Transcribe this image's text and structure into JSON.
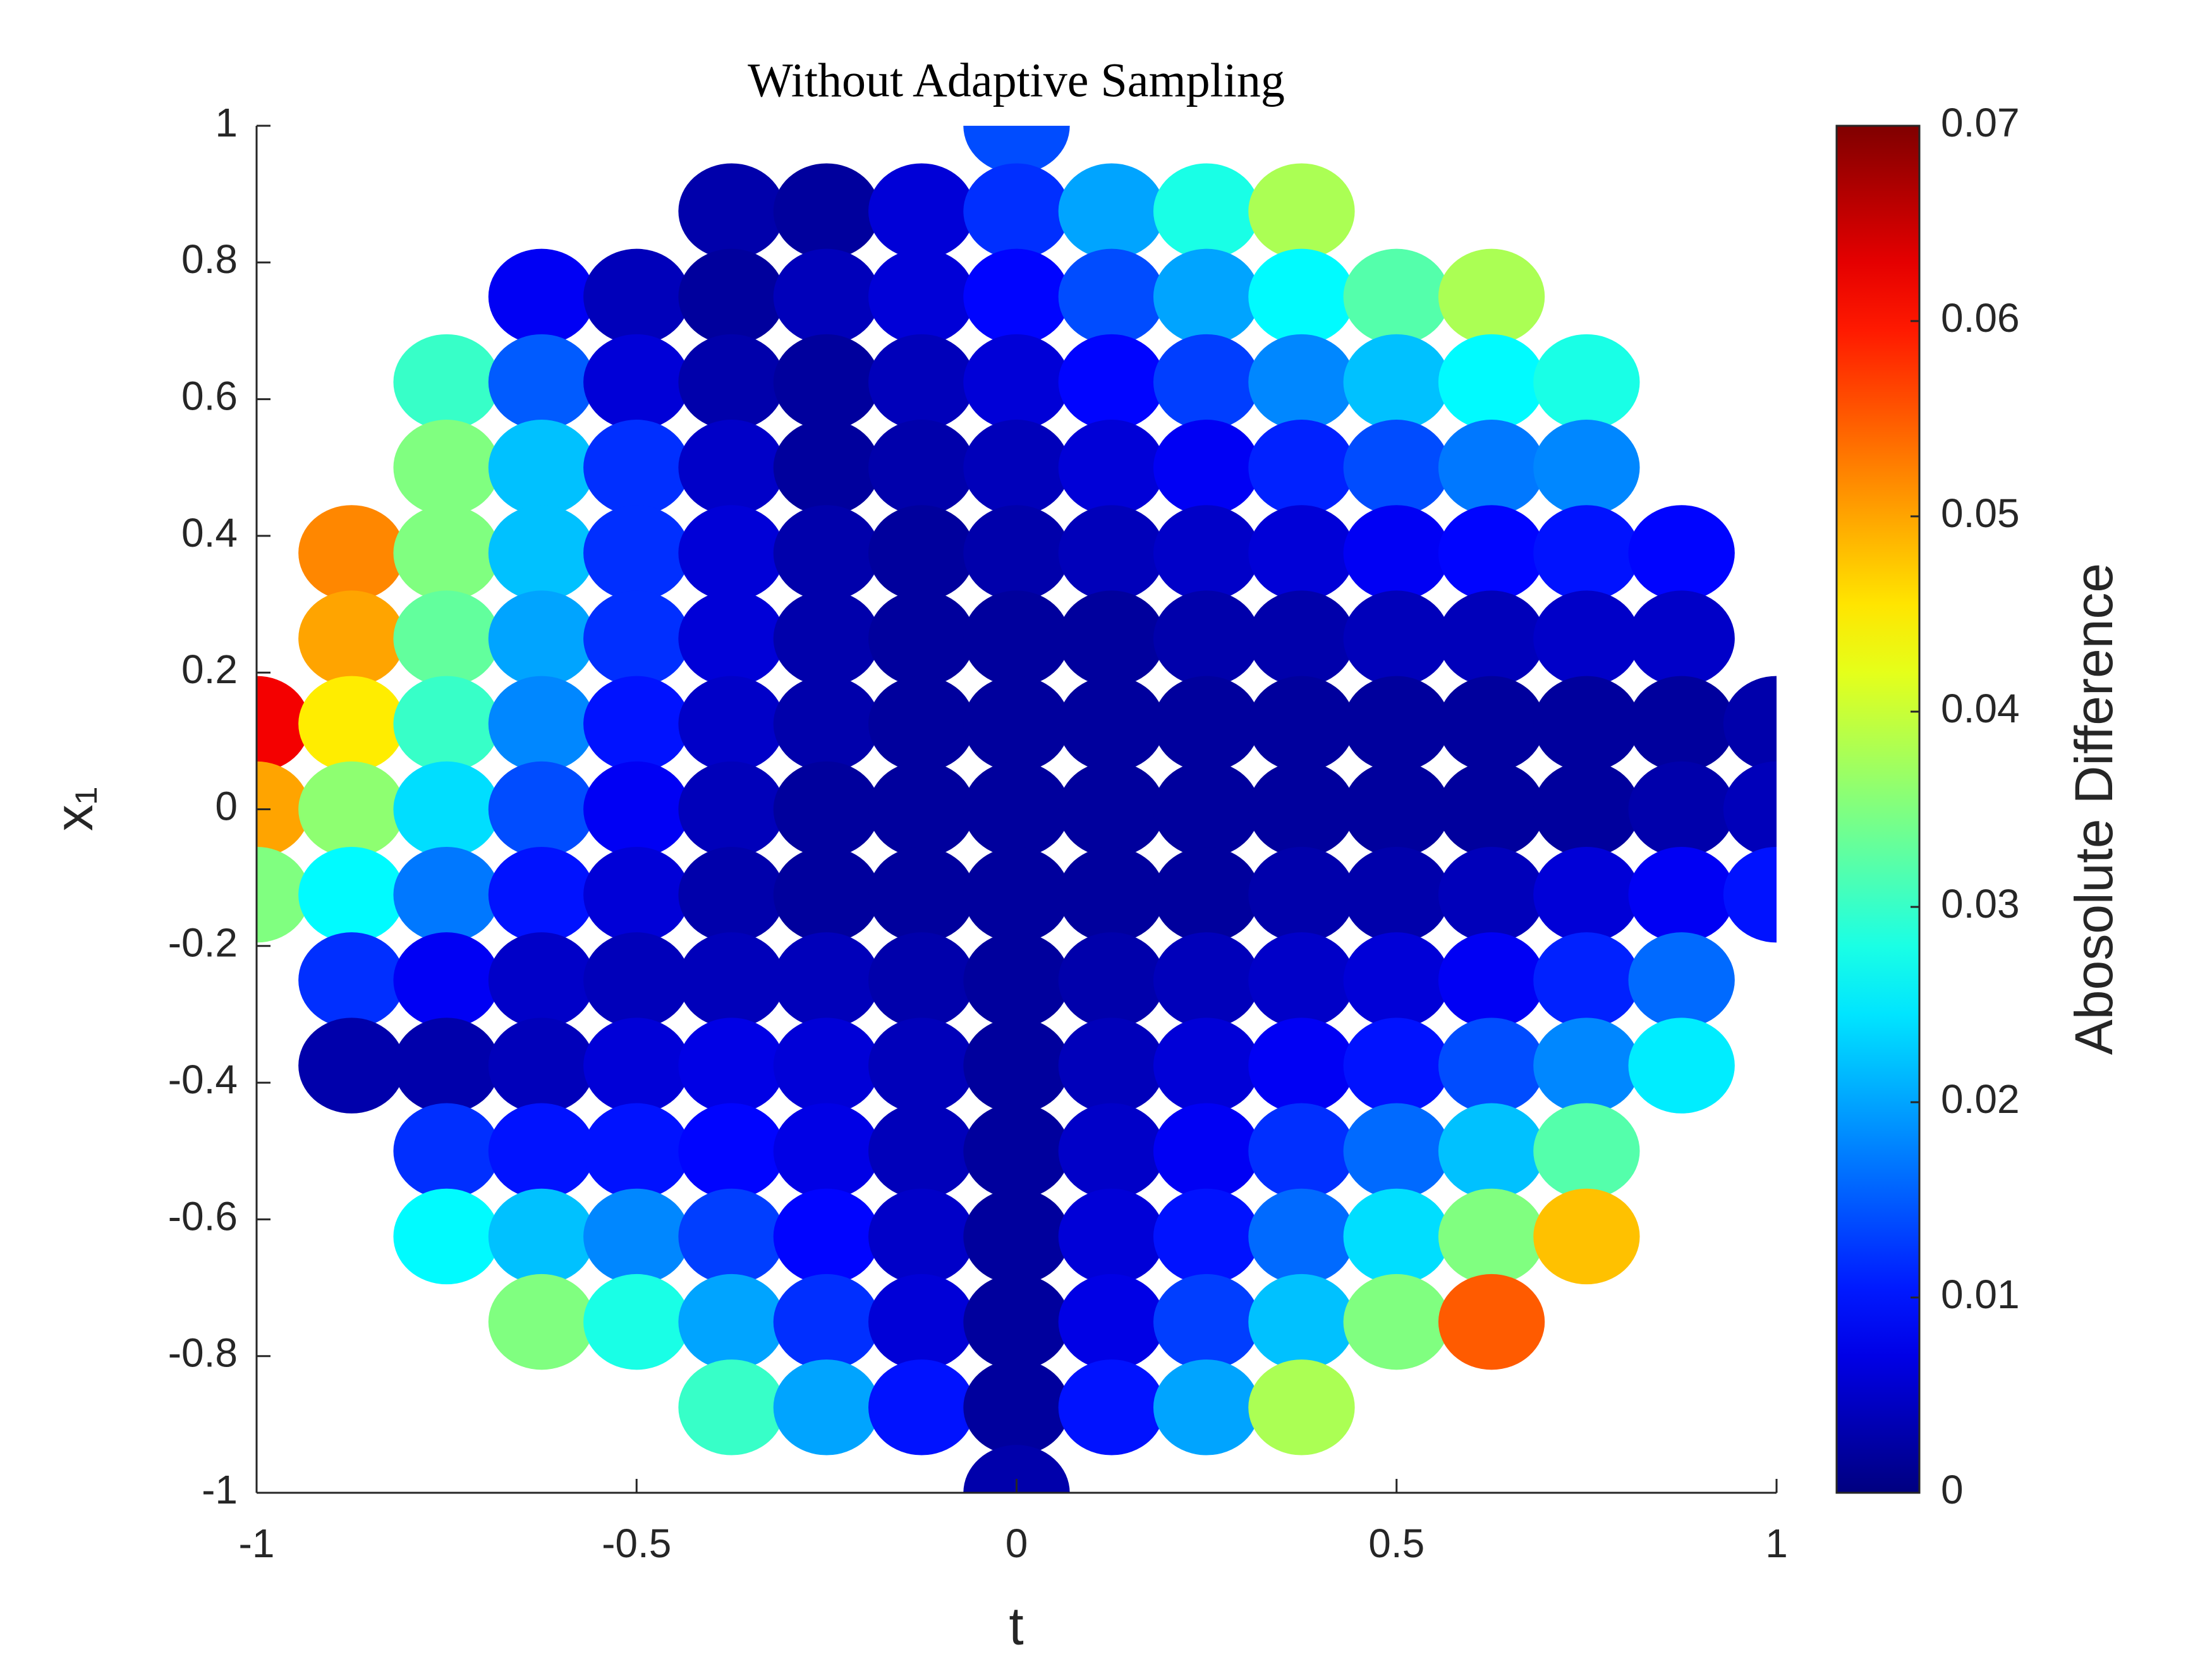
{
  "chart_data": {
    "type": "scatter",
    "title": "Without Adaptive Sampling",
    "xlabel": "t",
    "ylabel": "x₁",
    "colorbar_label": "Abosolute Difference",
    "colormap": "jet",
    "clim": [
      0,
      0.07
    ],
    "colorbar_ticks": [
      0,
      0.01,
      0.02,
      0.03,
      0.04,
      0.05,
      0.06,
      0.07
    ],
    "xlim": [
      -1,
      1
    ],
    "ylim": [
      -1,
      1
    ],
    "xticks": [
      -1,
      -0.5,
      0,
      0.5,
      1
    ],
    "yticks": [
      -1,
      -0.8,
      -0.6,
      -0.4,
      -0.2,
      0,
      0.2,
      0.4,
      0.6,
      0.8,
      1
    ],
    "x": [
      -1,
      -0.875,
      -0.75,
      -0.625,
      -0.5,
      -0.375,
      -0.25,
      -0.125,
      0,
      0.125,
      0.25,
      0.375,
      0.5,
      0.625,
      0.75,
      0.875,
      1
    ],
    "y": [
      1,
      0.875,
      0.75,
      0.625,
      0.5,
      0.375,
      0.25,
      0.125,
      0,
      -0.125,
      -0.25,
      -0.375,
      -0.5,
      -0.625,
      -0.75,
      -0.875,
      -1
    ],
    "values": [
      [
        null,
        null,
        null,
        null,
        null,
        null,
        null,
        null,
        0.014,
        null,
        null,
        null,
        null,
        null,
        null,
        null,
        null
      ],
      [
        null,
        null,
        null,
        null,
        null,
        0.003,
        0.002,
        0.006,
        0.012,
        0.02,
        0.028,
        0.038,
        null,
        null,
        null,
        null,
        null
      ],
      [
        null,
        null,
        null,
        0.008,
        0.004,
        0.002,
        0.004,
        0.006,
        0.009,
        0.014,
        0.02,
        0.026,
        0.032,
        0.038,
        null,
        null,
        null
      ],
      [
        null,
        null,
        0.03,
        0.015,
        0.006,
        0.003,
        0.002,
        0.004,
        0.006,
        0.009,
        0.013,
        0.018,
        0.022,
        0.026,
        0.028,
        null,
        null
      ],
      [
        null,
        null,
        0.035,
        0.022,
        0.012,
        0.005,
        0.002,
        0.003,
        0.004,
        0.006,
        0.008,
        0.011,
        0.014,
        0.017,
        0.018,
        null,
        null
      ],
      [
        null,
        0.052,
        0.035,
        0.022,
        0.012,
        0.006,
        0.003,
        0.002,
        0.003,
        0.004,
        0.005,
        0.006,
        0.008,
        0.009,
        0.01,
        0.009,
        null
      ],
      [
        null,
        0.05,
        0.033,
        0.02,
        0.012,
        0.006,
        0.003,
        0.002,
        0.002,
        0.002,
        0.003,
        0.003,
        0.004,
        0.004,
        0.005,
        0.005,
        null
      ],
      [
        0.062,
        0.045,
        0.03,
        0.018,
        0.01,
        0.005,
        0.003,
        0.002,
        0.002,
        0.002,
        0.002,
        0.002,
        0.002,
        0.002,
        0.002,
        0.002,
        0.003
      ],
      [
        0.05,
        0.036,
        0.024,
        0.014,
        0.008,
        0.004,
        0.002,
        0.002,
        0.002,
        0.002,
        0.002,
        0.002,
        0.002,
        0.002,
        0.002,
        0.003,
        0.004
      ],
      [
        0.035,
        0.026,
        0.017,
        0.01,
        0.006,
        0.003,
        0.002,
        0.002,
        0.002,
        0.002,
        0.002,
        0.003,
        0.003,
        0.004,
        0.006,
        0.008,
        0.01
      ],
      [
        null,
        0.012,
        0.008,
        0.005,
        0.004,
        0.004,
        0.004,
        0.003,
        0.002,
        0.003,
        0.004,
        0.005,
        0.006,
        0.008,
        0.011,
        0.016,
        null
      ],
      [
        null,
        0.003,
        0.003,
        0.004,
        0.006,
        0.007,
        0.006,
        0.004,
        0.002,
        0.004,
        0.006,
        0.008,
        0.01,
        0.014,
        0.018,
        0.025,
        null
      ],
      [
        null,
        null,
        0.012,
        0.01,
        0.01,
        0.009,
        0.007,
        0.004,
        0.002,
        0.005,
        0.008,
        0.012,
        0.016,
        0.022,
        0.032,
        null,
        null
      ],
      [
        null,
        null,
        0.026,
        0.022,
        0.018,
        0.013,
        0.009,
        0.005,
        0.002,
        0.006,
        0.01,
        0.016,
        0.024,
        0.035,
        0.048,
        null,
        null
      ],
      [
        null,
        null,
        null,
        0.035,
        0.028,
        0.02,
        0.012,
        0.006,
        0.002,
        0.007,
        0.013,
        0.022,
        0.035,
        0.055,
        null,
        null,
        null
      ],
      [
        null,
        null,
        null,
        null,
        null,
        0.03,
        0.02,
        0.01,
        0.002,
        0.01,
        0.02,
        0.038,
        null,
        null,
        null,
        null,
        null
      ],
      [
        null,
        null,
        null,
        null,
        null,
        null,
        null,
        null,
        0.003,
        null,
        null,
        null,
        null,
        null,
        null,
        null,
        null
      ]
    ]
  }
}
